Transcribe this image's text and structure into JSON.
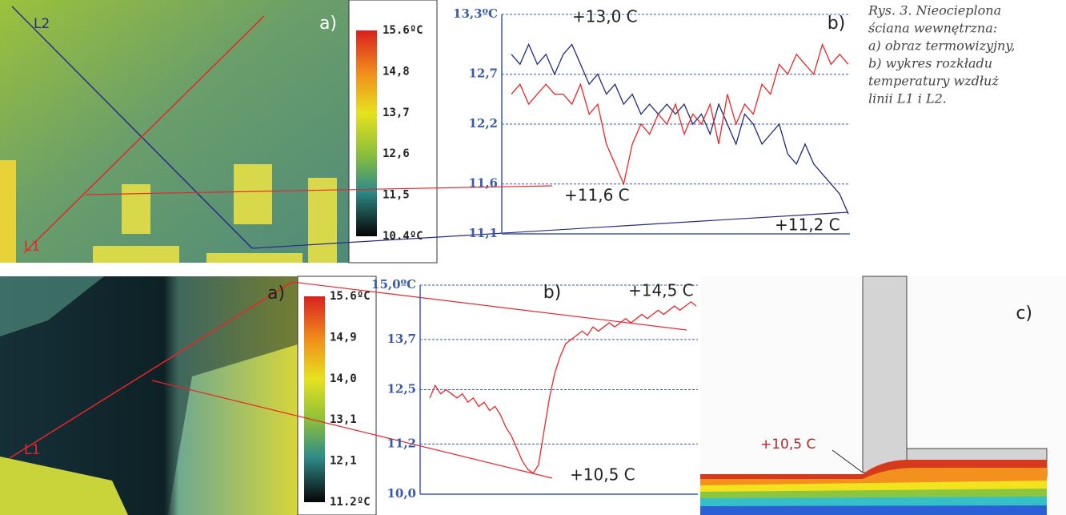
{
  "chart_data": [
    {
      "type": "line",
      "title": "b)",
      "categories": [
        null,
        null,
        null,
        null,
        null,
        null,
        null,
        null,
        null,
        null,
        null,
        null,
        null,
        null,
        null,
        null,
        null,
        null,
        null,
        null,
        null,
        null,
        null,
        null,
        null,
        null,
        null,
        null,
        null,
        null,
        null,
        null,
        null,
        null,
        null,
        null,
        null,
        null,
        null,
        null
      ],
      "series": [
        {
          "color": "#1f2a78",
          "values": [
            12.9,
            12.8,
            13.0,
            12.8,
            12.9,
            12.7,
            12.9,
            13.0,
            12.8,
            12.6,
            12.7,
            12.5,
            12.6,
            12.4,
            12.5,
            12.3,
            12.4,
            12.3,
            12.4,
            12.3,
            12.4,
            12.2,
            12.3,
            12.1,
            12.4,
            12.2,
            12.0,
            12.3,
            12.2,
            12.0,
            12.1,
            12.2,
            11.9,
            11.8,
            12.0,
            11.8,
            11.7,
            11.6,
            11.5,
            11.3
          ]
        },
        {
          "color": "#e8262a",
          "values": [
            12.5,
            12.6,
            12.4,
            12.5,
            12.6,
            12.5,
            12.5,
            12.4,
            12.6,
            12.3,
            12.4,
            12.0,
            11.8,
            11.6,
            12.0,
            12.2,
            12.1,
            12.3,
            12.2,
            12.4,
            12.1,
            12.3,
            12.2,
            12.4,
            12.0,
            12.5,
            12.2,
            12.4,
            12.3,
            12.6,
            12.5,
            12.8,
            12.7,
            12.9,
            12.8,
            12.7,
            13.0,
            12.8,
            12.9,
            12.8
          ]
        }
      ],
      "ylim": [
        11.1,
        13.3
      ],
      "yticks": [
        {
          "value": 11.1,
          "label": "11,1"
        },
        {
          "value": 11.6,
          "label": "11,6"
        },
        {
          "value": 12.2,
          "label": "12,2"
        },
        {
          "value": 12.7,
          "label": "12,7"
        },
        {
          "value": 13.3,
          "label": "13,3ºC"
        }
      ],
      "grid": true,
      "annotations": [
        "+13,0 C",
        "+11,6 C",
        "+11,2 C"
      ]
    },
    {
      "type": "line",
      "title": "b)",
      "categories": [
        null,
        null,
        null,
        null,
        null,
        null,
        null,
        null,
        null,
        null,
        null,
        null,
        null,
        null,
        null,
        null,
        null,
        null,
        null,
        null,
        null,
        null,
        null,
        null,
        null,
        null,
        null,
        null,
        null,
        null,
        null,
        null,
        null,
        null,
        null,
        null,
        null,
        null,
        null,
        null,
        null,
        null,
        null,
        null,
        null,
        null,
        null,
        null,
        null,
        null
      ],
      "series": [
        {
          "color": "#e8262a",
          "values": [
            12.3,
            12.6,
            12.4,
            12.5,
            12.4,
            12.3,
            12.4,
            12.2,
            12.3,
            12.1,
            12.2,
            12.0,
            12.1,
            11.9,
            11.6,
            11.4,
            11.1,
            10.8,
            10.6,
            10.5,
            10.7,
            11.5,
            12.3,
            12.9,
            13.3,
            13.6,
            13.7,
            13.8,
            13.9,
            13.8,
            14.0,
            13.9,
            14.0,
            14.1,
            14.0,
            14.1,
            14.2,
            14.1,
            14.2,
            14.3,
            14.2,
            14.3,
            14.4,
            14.3,
            14.4,
            14.5,
            14.4,
            14.5,
            14.6,
            14.5
          ]
        }
      ],
      "ylim": [
        10.0,
        15.0
      ],
      "yticks": [
        {
          "value": 10.0,
          "label": "10,0"
        },
        {
          "value": 11.2,
          "label": "11,2"
        },
        {
          "value": 12.5,
          "label": "12,5"
        },
        {
          "value": 13.7,
          "label": "13,7"
        },
        {
          "value": 15.0,
          "label": "15,0ºC"
        }
      ],
      "grid": true,
      "annotations": [
        "+14,5 C",
        "+10,5 C"
      ]
    }
  ],
  "thermal_images": [
    {
      "label": "a)",
      "lines": [
        "L2",
        "L1"
      ],
      "colorbar": [
        "15.6ºC",
        "14,8",
        "13,7",
        "12,6",
        "11,5",
        "10.4ºC"
      ]
    },
    {
      "label": "a)",
      "lines": [
        "L1"
      ],
      "colorbar": [
        "15.6ºC",
        "14,9",
        "14,0",
        "13,1",
        "12,1",
        "11.2ºC"
      ]
    }
  ],
  "diagram": {
    "label": "c)",
    "annotation": "+10,5 C"
  },
  "caption": [
    "Rys. 3. Nieocieplona",
    "ściana wewnętrzna:",
    "a) obraz termowizyjny,",
    "b) wykres rozkładu",
    "temperatury wzdłuż",
    "linii L1 i L2."
  ]
}
